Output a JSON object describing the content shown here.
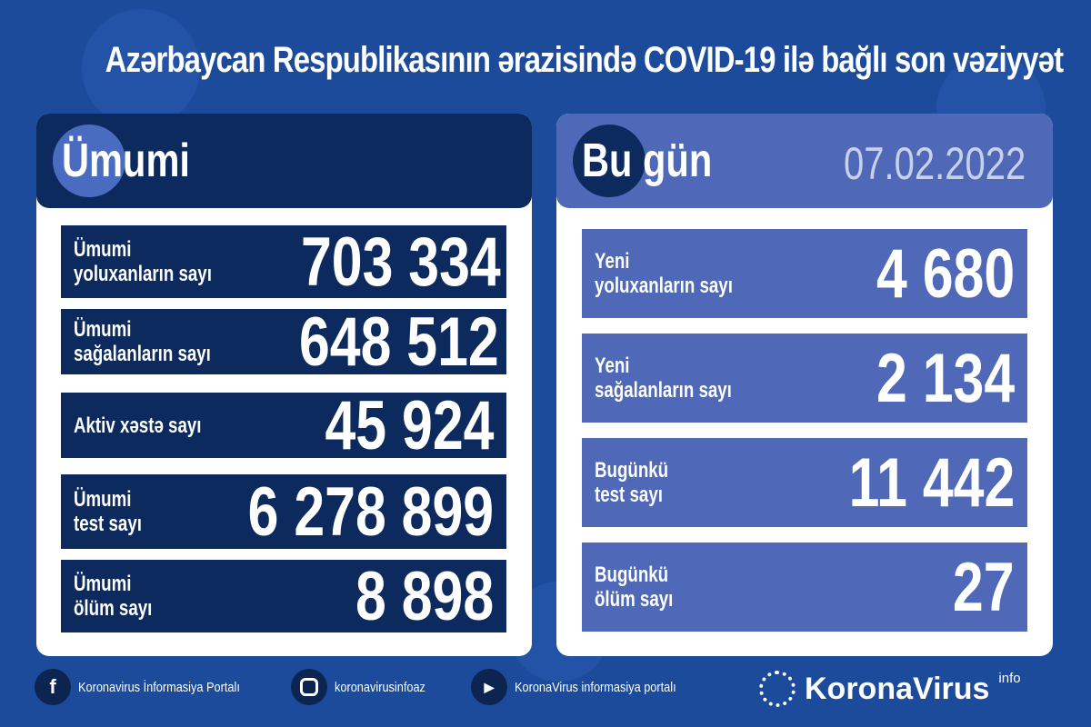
{
  "title": "Azərbaycan Respublikasının ərazisində COVID-19 ilə bağlı son vəziyyət",
  "colors": {
    "background": "#1c4b9b",
    "left_panel": "#0d2a5e",
    "right_panel": "#4f69b8"
  },
  "left": {
    "header": "Ümumi",
    "rows": [
      {
        "label1": "Ümumi",
        "label2": "yoluxanların sayı",
        "value": "703 334"
      },
      {
        "label1": "Ümumi",
        "label2": "sağalanların sayı",
        "value": "648 512"
      },
      {
        "label1": "Aktiv xəstə sayı",
        "label2": "",
        "value": "45 924"
      },
      {
        "label1": "Ümumi",
        "label2": "test sayı",
        "value": "6 278 899"
      },
      {
        "label1": "Ümumi",
        "label2": "ölüm sayı",
        "value": "8 898"
      }
    ]
  },
  "right": {
    "header": "Bu gün",
    "date": "07.02.2022",
    "rows": [
      {
        "label1": "Yeni",
        "label2": "yoluxanların sayı",
        "value": "4 680"
      },
      {
        "label1": "Yeni",
        "label2": "sağalanların sayı",
        "value": "2 134"
      },
      {
        "label1": "Bugünkü",
        "label2": "test sayı",
        "value": "11 442"
      },
      {
        "label1": "Bugünkü",
        "label2": "ölüm sayı",
        "value": "27"
      }
    ]
  },
  "footer": {
    "facebook": "Koronavirus İnformasiya Portalı",
    "instagram": "koronavirusinfoaz",
    "youtube": "KoronaVirus informasiya portalı",
    "logo": "KoronaVirus",
    "logo_sup": "info"
  }
}
